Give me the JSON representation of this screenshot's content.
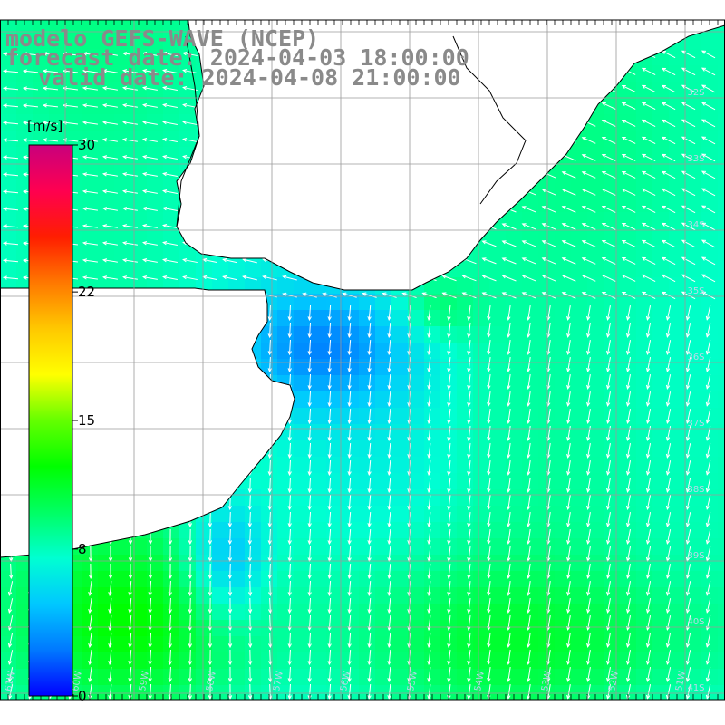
{
  "title": {
    "model": "modelo GEFS-WAVE (NCEP)",
    "forecast": "forecast date: 2024-04-03 18:00:00",
    "valid": "valid date: 2024-04-08 21:00:00"
  },
  "colorbar": {
    "unit": "[m/s]",
    "ticks": [
      "30",
      "22",
      "15",
      "8",
      "0"
    ],
    "tick_values": [
      30,
      22,
      15,
      8,
      0
    ],
    "range": [
      0,
      30
    ],
    "colors": [
      "#0000ff",
      "#0078ff",
      "#00c8ff",
      "#00ffd2",
      "#00ff64",
      "#00ff00",
      "#64ff00",
      "#ffff00",
      "#ffc800",
      "#ff7800",
      "#ff1e00",
      "#ff0050",
      "#c8007d"
    ]
  },
  "grid": {
    "lat_labels": [
      "32S",
      "33S",
      "34S",
      "35S",
      "36S",
      "37S",
      "38S",
      "39S",
      "40S",
      "41S"
    ],
    "lon_labels": [
      "61W",
      "60W",
      "59W",
      "58W",
      "57W",
      "56W",
      "55W",
      "54W",
      "53W",
      "52W",
      "51W"
    ]
  },
  "colors": {
    "land": "#ffffff",
    "title_text": "#8a8a8a",
    "grid_line": "#9a9a9a",
    "coast_line": "#000000",
    "arrow": "#ffffff"
  }
}
